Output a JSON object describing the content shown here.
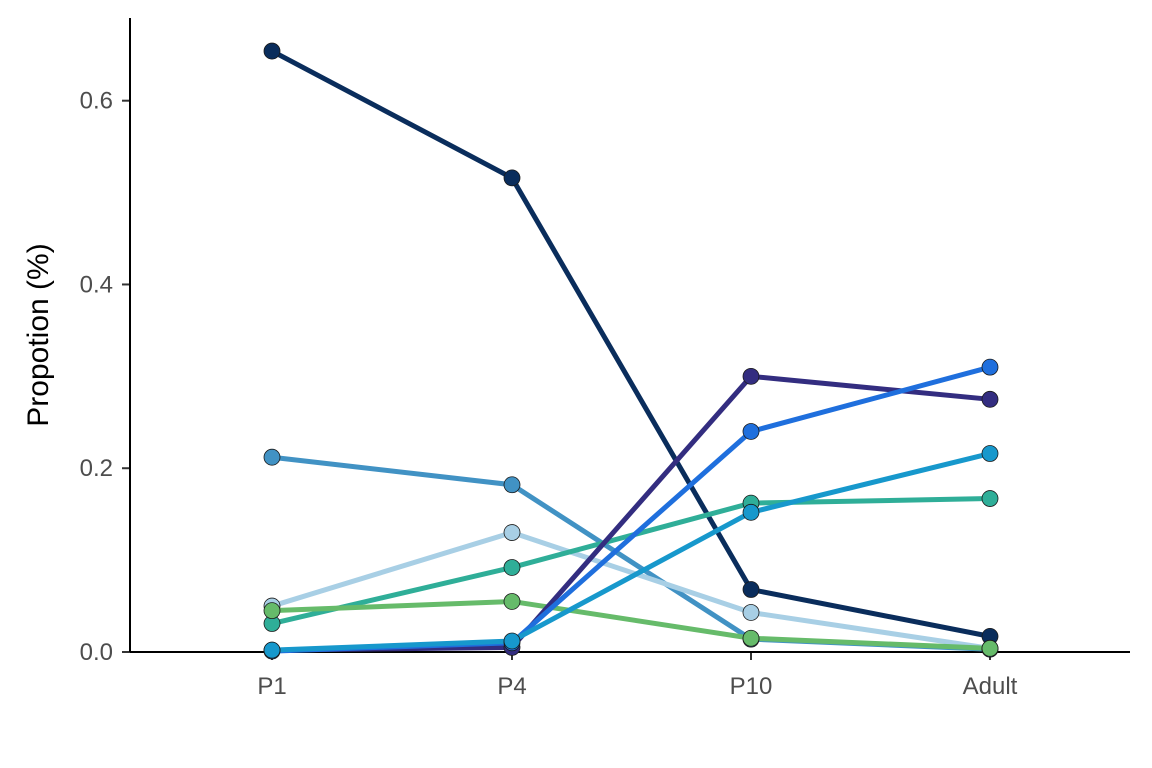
{
  "chart_data": {
    "type": "line",
    "title": "",
    "xlabel": "",
    "ylabel": "Propotion (%)",
    "categories": [
      "P1",
      "P4",
      "P10",
      "Adult"
    ],
    "ylim": [
      0,
      0.69
    ],
    "yticks": [
      0.0,
      0.2,
      0.4,
      0.6
    ],
    "ytick_labels": [
      "0.0",
      "0.2",
      "0.4",
      "0.6"
    ],
    "grid": false,
    "legend": "none",
    "series": [
      {
        "color": "#0a2d5c",
        "values": [
          0.654,
          0.516,
          0.068,
          0.017
        ]
      },
      {
        "color": "#4192c4",
        "values": [
          0.212,
          0.182,
          0.014,
          0.003
        ]
      },
      {
        "color": "#a8cfe5",
        "values": [
          0.05,
          0.13,
          0.043,
          0.004
        ]
      },
      {
        "color": "#2fae98",
        "values": [
          0.031,
          0.092,
          0.162,
          0.167
        ]
      },
      {
        "color": "#66bb6a",
        "values": [
          0.045,
          0.055,
          0.015,
          0.004
        ]
      },
      {
        "color": "#332d80",
        "values": [
          0.002,
          0.005,
          0.3,
          0.275
        ]
      },
      {
        "color": "#1f6fdd",
        "values": [
          0.001,
          0.01,
          0.24,
          0.31
        ]
      },
      {
        "color": "#1798cc",
        "values": [
          0.002,
          0.012,
          0.152,
          0.216
        ]
      }
    ]
  }
}
